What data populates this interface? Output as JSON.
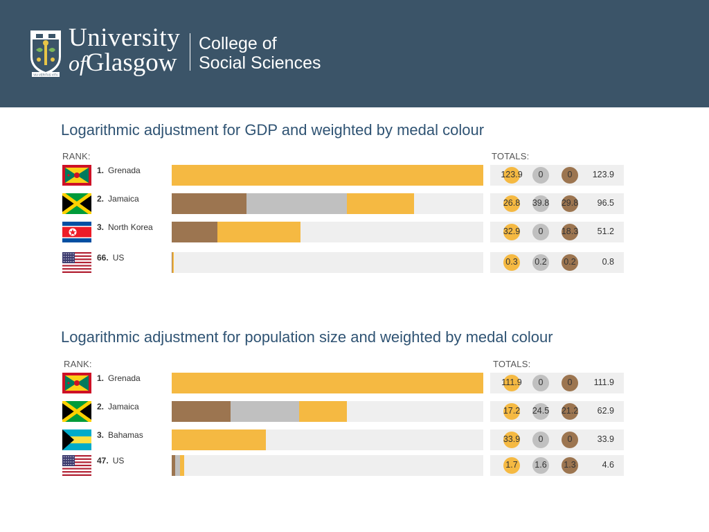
{
  "header": {
    "logo_line1": "University",
    "logo_of": "of",
    "logo_line2": "Glasgow",
    "crest_motto": "VIA VERITAS VITA",
    "college_line1": "College of",
    "college_line2": "Social Sciences"
  },
  "colors": {
    "gold": "#f5b942",
    "silver": "#c0c0c0",
    "bronze": "#9c7550",
    "track": "#efefef",
    "header_bg": "#3b5468",
    "title": "#2f5373"
  },
  "chart_data": [
    {
      "type": "bar",
      "title": "Logarithmic adjustment for GDP and weighted by medal colour",
      "rank_label": "RANK:",
      "totals_label": "TOTALS:",
      "xlim": [
        0,
        123.9
      ],
      "rows": [
        {
          "rank": "1.",
          "country": "Grenada",
          "flag": "grenada",
          "gold": 123.9,
          "silver": 0,
          "bronze": 0,
          "total": 123.9,
          "gold_label": "123.9",
          "silver_label": "0",
          "bronze_label": "0",
          "total_label": "123.9"
        },
        {
          "rank": "2.",
          "country": "Jamaica",
          "flag": "jamaica",
          "gold": 26.8,
          "silver": 39.8,
          "bronze": 29.8,
          "total": 96.5,
          "gold_label": "26.8",
          "silver_label": "39.8",
          "bronze_label": "29.8",
          "total_label": "96.5"
        },
        {
          "rank": "3.",
          "country": "North Korea",
          "flag": "north-korea",
          "gold": 32.9,
          "silver": 0,
          "bronze": 18.3,
          "total": 51.2,
          "gold_label": "32.9",
          "silver_label": "0",
          "bronze_label": "18.3",
          "total_label": "51.2"
        },
        {
          "rank": "66.",
          "country": "US",
          "flag": "us",
          "gold": 0.3,
          "silver": 0.2,
          "bronze": 0.2,
          "total": 0.8,
          "gold_label": "0.3",
          "silver_label": "0.2",
          "bronze_label": "0.2",
          "total_label": "0.8"
        }
      ]
    },
    {
      "type": "bar",
      "title": "Logarithmic adjustment for population size and weighted by medal colour",
      "rank_label": "RANK:",
      "totals_label": "TOTALS:",
      "xlim": [
        0,
        111.9
      ],
      "rows": [
        {
          "rank": "1.",
          "country": "Grenada",
          "flag": "grenada",
          "gold": 111.9,
          "silver": 0,
          "bronze": 0,
          "total": 111.9,
          "gold_label": "111.9",
          "silver_label": "0",
          "bronze_label": "0",
          "total_label": "111.9"
        },
        {
          "rank": "2.",
          "country": "Jamaica",
          "flag": "jamaica",
          "gold": 17.2,
          "silver": 24.5,
          "bronze": 21.2,
          "total": 62.9,
          "gold_label": "17.2",
          "silver_label": "24.5",
          "bronze_label": "21.2",
          "total_label": "62.9"
        },
        {
          "rank": "3.",
          "country": "Bahamas",
          "flag": "bahamas",
          "gold": 33.9,
          "silver": 0,
          "bronze": 0,
          "total": 33.9,
          "gold_label": "33.9",
          "silver_label": "0",
          "bronze_label": "0",
          "total_label": "33.9"
        },
        {
          "rank": "47.",
          "country": "US",
          "flag": "us",
          "gold": 1.7,
          "silver": 1.6,
          "bronze": 1.3,
          "total": 4.6,
          "gold_label": "1.7",
          "silver_label": "1.6",
          "bronze_label": "1.3",
          "total_label": "4.6"
        }
      ]
    }
  ]
}
